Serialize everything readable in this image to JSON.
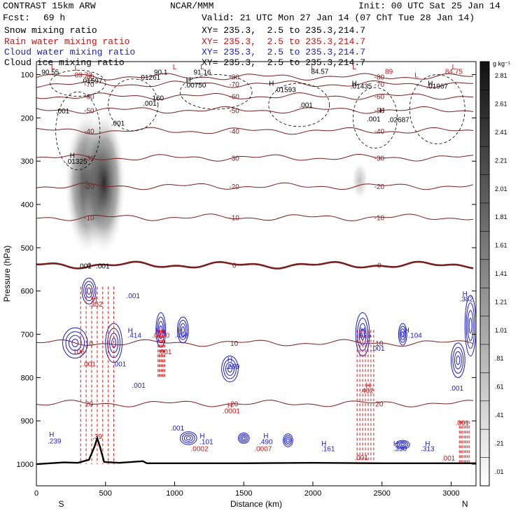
{
  "header": {
    "model": "CONTRAST 15km ARW",
    "center": "NCAR/MMM",
    "init": "Init: 00 UTC Sat 25 Jan 14",
    "fcst_label": "Fcst:",
    "fcst_value": "69 h",
    "valid": "Valid: 21 UTC Mon 27 Jan 14 (07 ChT Tue 28 Jan 14)",
    "fields": [
      {
        "name": "Snow mixing ratio",
        "xy": "XY= 235.3,  2.5 to 235.3,214.7",
        "color": "#000000"
      },
      {
        "name": "Rain water mixing ratio",
        "xy": "XY= 235.3,  2.5 to 235.3,214.7",
        "color": "#cc1111"
      },
      {
        "name": "Cloud water mixing ratio",
        "xy": "XY= 235.3,  2.5 to 235.3,214.7",
        "color": "#1a1acc"
      },
      {
        "name": "Cloud ice mixing ratio",
        "xy": "XY= 235.3,  2.5 to 235.3,214.7",
        "color": "#000000"
      }
    ]
  },
  "chart_data": {
    "type": "heatmap",
    "title": "",
    "xlabel": "Distance (km)",
    "ylabel": "Pressure (hPa)",
    "xlim": [
      0,
      3180
    ],
    "ylim": [
      1050,
      70
    ],
    "x_ticks": [
      0,
      500,
      1000,
      1500,
      2000,
      2500,
      3000
    ],
    "y_ticks": [
      100,
      200,
      300,
      400,
      500,
      600,
      700,
      800,
      900,
      1000
    ],
    "x_end_labels": {
      "left": "S",
      "right": "N"
    },
    "colorbar": {
      "unit": "g kg⁻¹",
      "ticks": [
        ".01",
        ".21",
        ".41",
        ".61",
        ".81",
        "1.01",
        "1.21",
        "1.41",
        "1.61",
        "1.81",
        "2.01",
        "2.21",
        "2.41",
        "2.61",
        "2.81"
      ]
    },
    "temperature_contours": [
      {
        "label": "20",
        "p": 860
      },
      {
        "label": "10",
        "p": 720
      },
      {
        "label": "0",
        "p": 540
      },
      {
        "label": "-10",
        "p": 430
      },
      {
        "label": "-20",
        "p": 358
      },
      {
        "label": "-30",
        "p": 292
      },
      {
        "label": "-40",
        "p": 230
      },
      {
        "label": "-50",
        "p": 182
      },
      {
        "label": "-60",
        "p": 150
      },
      {
        "label": "-70",
        "p": 122
      },
      {
        "label": "-80",
        "p": 105
      }
    ],
    "annotations": [
      {
        "text": "L",
        "x": 120,
        "p": 88,
        "color": "#cc1111"
      },
      {
        "text": "90.55",
        "x": 100,
        "p": 100,
        "color": "#000000"
      },
      {
        "text": "L",
        "x": 290,
        "p": 90,
        "color": "#cc1111"
      },
      {
        "text": "89.73",
        "x": 340,
        "p": 106,
        "color": "#cc1111"
      },
      {
        "text": ".01597",
        "x": 400,
        "p": 120,
        "color": "#000000"
      },
      {
        "text": "L",
        "x": 1000,
        "p": 88,
        "color": "#cc1111"
      },
      {
        "text": "L",
        "x": 1200,
        "p": 88,
        "color": "#cc1111"
      },
      {
        "text": "90.1",
        "x": 900,
        "p": 100,
        "color": "#000000"
      },
      {
        "text": ".01261",
        "x": 820,
        "p": 112,
        "color": "#000000"
      },
      {
        "text": "91.16",
        "x": 1200,
        "p": 100,
        "color": "#000000"
      },
      {
        "text": "H",
        "x": 1100,
        "p": 118,
        "color": "#000000"
      },
      {
        "text": ".00750",
        "x": 1150,
        "p": 130,
        "color": "#000000"
      },
      {
        "text": "H",
        "x": 1700,
        "p": 126,
        "color": "#000000"
      },
      {
        "text": ".01593",
        "x": 1800,
        "p": 140,
        "color": "#000000"
      },
      {
        "text": "L",
        "x": 2000,
        "p": 88,
        "color": "#cc1111"
      },
      {
        "text": "84.57",
        "x": 2050,
        "p": 98,
        "color": "#000000"
      },
      {
        "text": "L",
        "x": 2300,
        "p": 88,
        "color": "#cc1111"
      },
      {
        "text": "H",
        "x": 2300,
        "p": 126,
        "color": "#000000"
      },
      {
        "text": ".01435",
        "x": 2350,
        "p": 132,
        "color": "#000000"
      },
      {
        "text": "89",
        "x": 2550,
        "p": 98,
        "color": "#cc1111"
      },
      {
        "text": "L",
        "x": 2750,
        "p": 106,
        "color": "#cc1111"
      },
      {
        "text": "84.75",
        "x": 3020,
        "p": 98,
        "color": "#cc1111"
      },
      {
        "text": "L",
        "x": 3020,
        "p": 88,
        "color": "#cc1111"
      },
      {
        "text": "H",
        "x": 2850,
        "p": 126,
        "color": "#000000"
      },
      {
        "text": ".01967",
        "x": 2900,
        "p": 132,
        "color": "#000000"
      },
      {
        "text": "H",
        "x": 2500,
        "p": 188,
        "color": "#000000"
      },
      {
        "text": ".001",
        "x": 2440,
        "p": 208,
        "color": "#000000"
      },
      {
        "text": ".02687",
        "x": 2620,
        "p": 210,
        "color": "#000000"
      },
      {
        "text": "160",
        "x": 880,
        "p": 160,
        "color": "#000000"
      },
      {
        "text": ".001",
        "x": 820,
        "p": 172,
        "color": "#000000"
      },
      {
        "text": ".001",
        "x": 1950,
        "p": 176,
        "color": "#000000"
      },
      {
        "text": ".001",
        "x": 190,
        "p": 190,
        "color": "#000000"
      },
      {
        "text": ".001",
        "x": 590,
        "p": 218,
        "color": "#000000"
      },
      {
        "text": "H",
        "x": 260,
        "p": 292,
        "color": "#000000"
      },
      {
        "text": ".01325",
        "x": 290,
        "p": 306,
        "color": "#000000"
      },
      {
        "text": ".001",
        "x": 350,
        "p": 548,
        "color": "#000000"
      },
      {
        "text": ".001",
        "x": 480,
        "p": 548,
        "color": "#000000"
      },
      {
        "text": "H",
        "x": 420,
        "p": 624,
        "color": "#cc1111"
      },
      {
        "text": ".352",
        "x": 430,
        "p": 636,
        "color": "#cc1111"
      },
      {
        "text": ".001",
        "x": 700,
        "p": 617,
        "color": "#1a1acc"
      },
      {
        "text": "H",
        "x": 680,
        "p": 697,
        "color": "#1a1acc"
      },
      {
        "text": ".414",
        "x": 710,
        "p": 708,
        "color": "#1a1acc"
      },
      {
        "text": "H",
        "x": 880,
        "p": 697,
        "color": "#cc1111"
      },
      {
        "text": ".0170",
        "x": 900,
        "p": 708,
        "color": "#cc1111"
      },
      {
        "text": "H",
        "x": 1040,
        "p": 697,
        "color": "#1a1acc"
      },
      {
        "text": ".456",
        "x": 1050,
        "p": 708,
        "color": "#1a1acc"
      },
      {
        "text": ".001",
        "x": 930,
        "p": 746,
        "color": "#cc1111"
      },
      {
        "text": ".106",
        "x": 300,
        "p": 746,
        "color": "#cc1111"
      },
      {
        "text": ".001",
        "x": 380,
        "p": 774,
        "color": "#cc1111"
      },
      {
        "text": ".001",
        "x": 600,
        "p": 774,
        "color": "#1a1acc"
      },
      {
        "text": ".001",
        "x": 740,
        "p": 824,
        "color": "#1a1acc"
      },
      {
        "text": "H",
        "x": 1400,
        "p": 764,
        "color": "#1a1acc"
      },
      {
        "text": ".269",
        "x": 1420,
        "p": 780,
        "color": "#1a1acc"
      },
      {
        "text": "H",
        "x": 1400,
        "p": 870,
        "color": "#cc1111"
      },
      {
        "text": ".0001",
        "x": 1410,
        "p": 883,
        "color": "#cc1111"
      },
      {
        "text": "H",
        "x": 2360,
        "p": 696,
        "color": "#1a1acc"
      },
      {
        "text": ".925",
        "x": 2370,
        "p": 708,
        "color": "#1a1acc"
      },
      {
        "text": ".001",
        "x": 2470,
        "p": 738,
        "color": "#1a1acc"
      },
      {
        "text": "H",
        "x": 2680,
        "p": 696,
        "color": "#1a1acc"
      },
      {
        "text": ".104",
        "x": 2740,
        "p": 708,
        "color": "#1a1acc"
      },
      {
        "text": "H",
        "x": 2400,
        "p": 824,
        "color": "#cc1111"
      },
      {
        "text": ".402",
        "x": 2390,
        "p": 836,
        "color": "#cc1111"
      },
      {
        "text": "H",
        "x": 3100,
        "p": 612,
        "color": "#1a1acc"
      },
      {
        "text": ".382",
        "x": 3110,
        "p": 624,
        "color": "#1a1acc"
      },
      {
        "text": ".001",
        "x": 3040,
        "p": 830,
        "color": "#1a1acc"
      },
      {
        "text": ".001",
        "x": 3080,
        "p": 910,
        "color": "#cc1111"
      },
      {
        "text": "H",
        "x": 110,
        "p": 937,
        "color": "#1a1acc"
      },
      {
        "text": ".239",
        "x": 130,
        "p": 952,
        "color": "#1a1acc"
      },
      {
        "text": ".39",
        "x": 440,
        "p": 942,
        "color": "#cc1111"
      },
      {
        "text": ".001",
        "x": 1020,
        "p": 922,
        "color": "#1a1acc"
      },
      {
        "text": "H",
        "x": 1200,
        "p": 940,
        "color": "#1a1acc"
      },
      {
        "text": ".101",
        "x": 1230,
        "p": 954,
        "color": "#1a1acc"
      },
      {
        "text": ".0002",
        "x": 1180,
        "p": 970,
        "color": "#cc1111"
      },
      {
        "text": "H",
        "x": 1660,
        "p": 940,
        "color": "#1a1acc"
      },
      {
        "text": ".490",
        "x": 1660,
        "p": 954,
        "color": "#1a1acc"
      },
      {
        "text": ".0007",
        "x": 1640,
        "p": 970,
        "color": "#cc1111"
      },
      {
        "text": "H",
        "x": 2080,
        "p": 958,
        "color": "#1a1acc"
      },
      {
        "text": ".161",
        "x": 2110,
        "p": 970,
        "color": "#1a1acc"
      },
      {
        "text": "H",
        "x": 2600,
        "p": 958,
        "color": "#1a1acc"
      },
      {
        "text": ".330",
        "x": 2630,
        "p": 970,
        "color": "#1a1acc"
      },
      {
        "text": "H",
        "x": 2830,
        "p": 958,
        "color": "#1a1acc"
      },
      {
        "text": ".313",
        "x": 2830,
        "p": 970,
        "color": "#1a1acc"
      },
      {
        "text": ".001",
        "x": 2350,
        "p": 990,
        "color": "#cc1111"
      },
      {
        "text": ".001",
        "x": 2980,
        "p": 992,
        "color": "#cc1111"
      }
    ],
    "snow_columns": [
      {
        "x": 370,
        "p_top": 180,
        "p_bottom": 520,
        "max": 1.4
      },
      {
        "x": 490,
        "p_top": 180,
        "p_bottom": 520,
        "max": 1.3
      },
      {
        "x": 2340,
        "p_top": 300,
        "p_bottom": 390,
        "max": 0.3
      }
    ],
    "rain_shafts": [
      {
        "x1": 320,
        "x2": 560,
        "p_top": 590,
        "p_bottom": 1000
      },
      {
        "x1": 880,
        "x2": 930,
        "p_top": 690,
        "p_bottom": 800
      },
      {
        "x1": 2320,
        "x2": 2440,
        "p_top": 690,
        "p_bottom": 1000
      },
      {
        "x1": 3060,
        "x2": 3130,
        "p_top": 900,
        "p_bottom": 1000
      }
    ],
    "cloud_water_cells": [
      {
        "x": 380,
        "p": 600,
        "rx": 50,
        "rp": 30
      },
      {
        "x": 280,
        "p": 720,
        "rx": 90,
        "rp": 35
      },
      {
        "x": 560,
        "p": 720,
        "rx": 60,
        "rp": 45
      },
      {
        "x": 900,
        "p": 690,
        "rx": 35,
        "rp": 40
      },
      {
        "x": 1060,
        "p": 690,
        "rx": 40,
        "rp": 30
      },
      {
        "x": 1400,
        "p": 780,
        "rx": 60,
        "rp": 30
      },
      {
        "x": 2360,
        "p": 700,
        "rx": 50,
        "rp": 50
      },
      {
        "x": 2650,
        "p": 700,
        "rx": 30,
        "rp": 25
      },
      {
        "x": 3050,
        "p": 760,
        "rx": 50,
        "rp": 40
      },
      {
        "x": 3140,
        "p": 680,
        "rx": 40,
        "rp": 70
      },
      {
        "x": 1100,
        "p": 940,
        "rx": 60,
        "rp": 15
      },
      {
        "x": 1500,
        "p": 940,
        "rx": 40,
        "rp": 12
      },
      {
        "x": 1820,
        "p": 945,
        "rx": 35,
        "rp": 15
      },
      {
        "x": 2650,
        "p": 955,
        "rx": 50,
        "rp": 10
      }
    ],
    "terrain": [
      [
        0,
        1000
      ],
      [
        100,
        998
      ],
      [
        200,
        996
      ],
      [
        300,
        997
      ],
      [
        380,
        990
      ],
      [
        420,
        960
      ],
      [
        440,
        940
      ],
      [
        460,
        960
      ],
      [
        490,
        995
      ],
      [
        600,
        997
      ],
      [
        770,
        993
      ],
      [
        800,
        998
      ],
      [
        1000,
        998
      ],
      [
        1500,
        998
      ],
      [
        2000,
        997
      ],
      [
        2500,
        998
      ],
      [
        3000,
        998
      ],
      [
        3180,
        998
      ]
    ]
  }
}
